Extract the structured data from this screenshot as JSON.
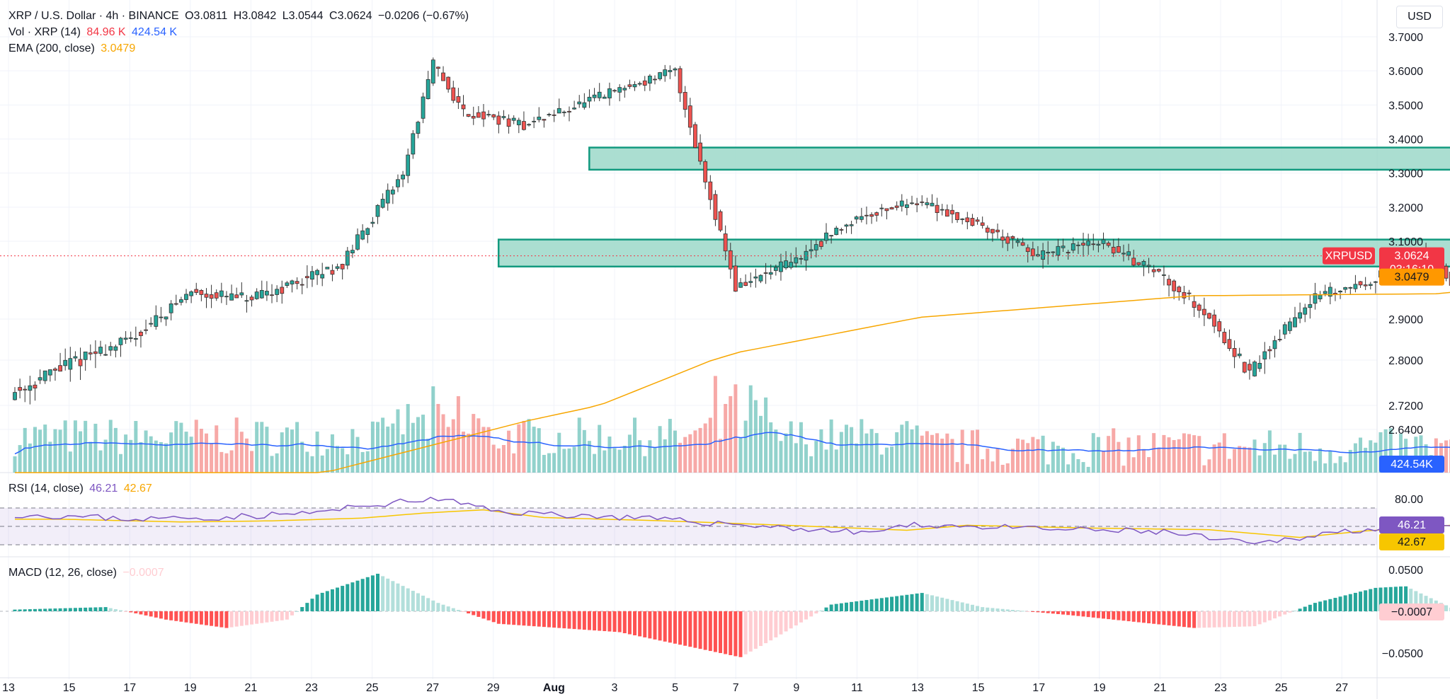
{
  "header": {
    "symbol": "XRP / U.S. Dollar · 4h · BINANCE",
    "open": "O3.0811",
    "high": "H3.0842",
    "low": "L3.0544",
    "close": "C3.0624",
    "change": "−0.0206 (−0.67%)"
  },
  "volume_legend": {
    "label": "Vol · XRP (14)",
    "value1": "84.96 K",
    "value2": "424.54 K"
  },
  "ema_legend": {
    "label": "EMA (200, close)",
    "value": "3.0479"
  },
  "rsi_legend": {
    "label": "RSI (14, close)",
    "value1": "46.21",
    "value2": "42.67"
  },
  "macd_legend": {
    "label": "MACD (12, 26, close)",
    "value": "−0.0007"
  },
  "currency_button": "USD",
  "price_labels": {
    "symbol": "XRPUSD",
    "last_price": "3.0624",
    "countdown": "03:16:10",
    "ema_value": "3.0479",
    "volume_ma": "424.54K",
    "rsi_value": "46.21",
    "rsi_ma": "42.67",
    "macd_value": "−0.0007"
  },
  "colors": {
    "up": "#26a69a",
    "down": "#ef5350",
    "ema": "#f7a600",
    "volume_ma": "#2962ff",
    "rsi": "#7e57c2",
    "rsi_ma": "#f7c600",
    "zone_fill": "#9cd8c9",
    "zone_border": "#129a7f",
    "macd_up_strong": "#26a69a",
    "macd_up_weak": "#b2dfdb",
    "macd_down_strong": "#ff5252",
    "macd_down_weak": "#ffcdd2"
  },
  "chart_data": {
    "type": "candlestick",
    "title": "XRP / U.S. Dollar · 4h · BINANCE",
    "price_axis": {
      "ticks": [
        "3.7000",
        "3.6000",
        "3.5000",
        "3.4000",
        "3.3000",
        "3.2000",
        "3.1000",
        "2.9000",
        "2.8000",
        "2.7200",
        "2.6400"
      ],
      "ylim": [
        2.6,
        3.72
      ]
    },
    "time_axis": {
      "ticks": [
        "13",
        "15",
        "17",
        "19",
        "21",
        "23",
        "25",
        "27",
        "29",
        "Aug",
        "3",
        "5",
        "7",
        "9",
        "11",
        "13",
        "15",
        "17",
        "19",
        "21",
        "23",
        "25",
        "27"
      ]
    },
    "close_path": [
      [
        0,
        2.74
      ],
      [
        4,
        2.85
      ],
      [
        6,
        2.97
      ],
      [
        8,
        2.95
      ],
      [
        11,
        3.04
      ],
      [
        13,
        3.3
      ],
      [
        14,
        3.62
      ],
      [
        15,
        3.48
      ],
      [
        17,
        3.44
      ],
      [
        20,
        3.54
      ],
      [
        22,
        3.6
      ],
      [
        23,
        3.28
      ],
      [
        24,
        2.98
      ],
      [
        26,
        3.05
      ],
      [
        28,
        3.17
      ],
      [
        30,
        3.22
      ],
      [
        32,
        3.15
      ],
      [
        34,
        3.06
      ],
      [
        36,
        3.1
      ],
      [
        38,
        3.02
      ],
      [
        39.5,
        2.92
      ],
      [
        41,
        2.77
      ],
      [
        43,
        2.95
      ],
      [
        45,
        3.0
      ],
      [
        47,
        3.07
      ],
      [
        48,
        2.96
      ],
      [
        49,
        3.0
      ],
      [
        50,
        3.01
      ],
      [
        51,
        3.1
      ],
      [
        52,
        3.36
      ],
      [
        53,
        3.3
      ],
      [
        55,
        3.2
      ],
      [
        57,
        3.22
      ],
      [
        58,
        3.17
      ],
      [
        60,
        3.3
      ],
      [
        62,
        3.33
      ],
      [
        63,
        3.22
      ],
      [
        64,
        3.06
      ],
      [
        66,
        3.12
      ],
      [
        68,
        3.14
      ],
      [
        69,
        3.0
      ],
      [
        70,
        3.06
      ]
    ],
    "ema_200": [
      [
        0,
        2.28
      ],
      [
        10,
        2.49
      ],
      [
        17,
        2.67
      ],
      [
        24,
        2.82
      ],
      [
        30,
        2.905
      ],
      [
        39,
        2.96
      ],
      [
        47,
        2.965
      ],
      [
        52,
        3.0
      ],
      [
        60,
        3.025
      ],
      [
        66,
        3.05
      ],
      [
        70,
        3.048
      ]
    ],
    "last_price": 3.0624,
    "ema_last": 3.0479,
    "zones": [
      {
        "label": "resistance",
        "from_day": 19,
        "to_day": 85,
        "top": 3.375,
        "bottom": 3.31
      },
      {
        "label": "support",
        "from_day": 16,
        "to_day": 85,
        "top": 3.105,
        "bottom": 3.035
      }
    ],
    "projection_path": [
      [
        70.6,
        3.08
      ],
      [
        73.6,
        2.87
      ],
      [
        75.4,
        2.99
      ],
      [
        77.3,
        2.73
      ]
    ],
    "volume": {
      "ma_last": "424.54K",
      "last": "84.96 K"
    },
    "rsi": {
      "upper": 70,
      "lower": 30,
      "axis_tick": "80.00",
      "last": 46.21,
      "ma_last": 42.67,
      "path": [
        [
          0,
          63
        ],
        [
          4,
          58
        ],
        [
          7,
          60
        ],
        [
          10,
          65
        ],
        [
          12,
          74
        ],
        [
          14,
          80
        ],
        [
          16,
          66
        ],
        [
          20,
          60
        ],
        [
          24,
          52
        ],
        [
          28,
          43
        ],
        [
          30,
          52
        ],
        [
          34,
          47
        ],
        [
          38,
          44
        ],
        [
          41,
          30
        ],
        [
          43,
          41
        ],
        [
          46,
          52
        ],
        [
          48,
          47
        ],
        [
          51,
          62
        ],
        [
          53,
          68
        ],
        [
          55,
          59
        ],
        [
          60,
          49
        ],
        [
          63,
          53
        ],
        [
          65,
          46
        ],
        [
          66,
          38
        ],
        [
          69,
          38
        ],
        [
          70,
          46
        ]
      ]
    },
    "macd": {
      "axis_ticks": [
        "0.0500",
        "−0.0500"
      ],
      "last": -0.0007,
      "histogram": [
        [
          0,
          0.002
        ],
        [
          3,
          0.005
        ],
        [
          5,
          -0.01
        ],
        [
          7,
          -0.02
        ],
        [
          9,
          -0.01
        ],
        [
          10,
          0.02
        ],
        [
          12,
          0.045
        ],
        [
          14,
          0.01
        ],
        [
          16,
          -0.015
        ],
        [
          20,
          -0.025
        ],
        [
          24,
          -0.055
        ],
        [
          25,
          -0.035
        ],
        [
          27,
          0.008
        ],
        [
          30,
          0.022
        ],
        [
          32,
          0.005
        ],
        [
          35,
          -0.005
        ],
        [
          39,
          -0.02
        ],
        [
          41,
          -0.018
        ],
        [
          43,
          0.01
        ],
        [
          45,
          0.028
        ],
        [
          46,
          0.03
        ],
        [
          48,
          -0.004
        ],
        [
          51,
          0.012
        ],
        [
          52,
          0.045
        ],
        [
          54,
          0.02
        ],
        [
          56,
          -0.01
        ],
        [
          58,
          -0.025
        ],
        [
          60,
          0.006
        ],
        [
          62,
          0.008
        ],
        [
          63,
          -0.01
        ],
        [
          65,
          -0.02
        ],
        [
          67,
          0.003
        ],
        [
          69,
          -0.012
        ],
        [
          70,
          -0.001
        ]
      ]
    }
  }
}
